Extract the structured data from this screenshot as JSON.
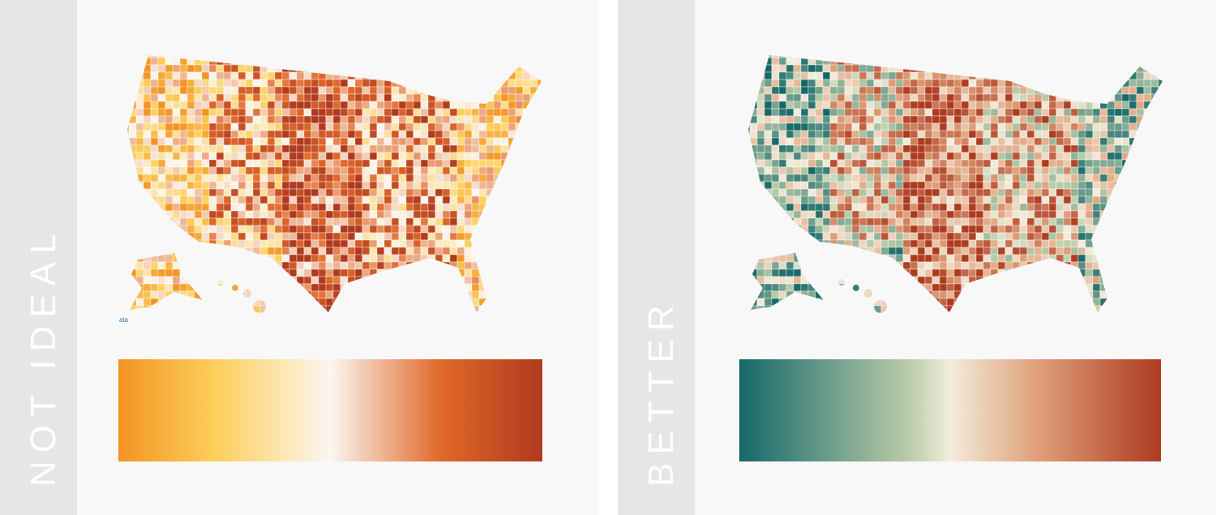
{
  "panels": [
    {
      "label": "NOT IDEAL",
      "gradient": [
        "#f39323",
        "#fdd05c",
        "#fbf6f0",
        "#e1692a",
        "#b03a1e"
      ],
      "stops": [
        0,
        0.23,
        0.5,
        0.76,
        1
      ]
    },
    {
      "label": "BETTER",
      "gradient": [
        "#15686a",
        "#b9cba8",
        "#f3ecdc",
        "#e0a27c",
        "#ae3b20"
      ],
      "stops": [
        0,
        0.4,
        0.5,
        0.7,
        1
      ]
    }
  ],
  "watermark": "ata"
}
